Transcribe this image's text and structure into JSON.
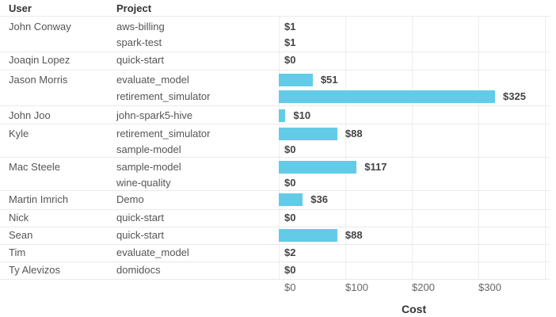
{
  "table": {
    "headers": {
      "user": "User",
      "project": "Project"
    }
  },
  "chart_data": {
    "type": "bar",
    "orientation": "horizontal",
    "title": "",
    "xlabel": "Cost",
    "ylabel": "",
    "xlim": [
      0,
      400
    ],
    "x_ticks": [
      "$0",
      "$100",
      "$200",
      "$300"
    ],
    "grid": true,
    "bar_color": "#62cce8",
    "groups": [
      {
        "user": "John Conway",
        "rows": [
          {
            "project": "aws-billing",
            "value": 1,
            "label": "$1"
          },
          {
            "project": "spark-test",
            "value": 1,
            "label": "$1"
          }
        ]
      },
      {
        "user": "Joaqin Lopez",
        "rows": [
          {
            "project": "quick-start",
            "value": 0,
            "label": "$0"
          }
        ]
      },
      {
        "user": "Jason Morris",
        "rows": [
          {
            "project": "evaluate_model",
            "value": 51,
            "label": "$51"
          },
          {
            "project": "retirement_simulator",
            "value": 325,
            "label": "$325"
          }
        ]
      },
      {
        "user": "John Joo",
        "rows": [
          {
            "project": "john-spark5-hive",
            "value": 10,
            "label": "$10"
          }
        ]
      },
      {
        "user": "Kyle",
        "rows": [
          {
            "project": "retirement_simulator",
            "value": 88,
            "label": "$88"
          },
          {
            "project": "sample-model",
            "value": 0,
            "label": "$0"
          }
        ]
      },
      {
        "user": "Mac Steele",
        "rows": [
          {
            "project": "sample-model",
            "value": 117,
            "label": "$117"
          },
          {
            "project": "wine-quality",
            "value": 0,
            "label": "$0"
          }
        ]
      },
      {
        "user": "Martin Imrich",
        "rows": [
          {
            "project": "Demo",
            "value": 36,
            "label": "$36"
          }
        ]
      },
      {
        "user": "Nick",
        "rows": [
          {
            "project": "quick-start",
            "value": 0,
            "label": "$0"
          }
        ]
      },
      {
        "user": "Sean",
        "rows": [
          {
            "project": "quick-start",
            "value": 88,
            "label": "$88"
          }
        ]
      },
      {
        "user": "Tim",
        "rows": [
          {
            "project": "evaluate_model",
            "value": 2,
            "label": "$2"
          }
        ]
      },
      {
        "user": "Ty Alevizos",
        "rows": [
          {
            "project": "domidocs",
            "value": 0,
            "label": "$0"
          }
        ]
      }
    ]
  }
}
